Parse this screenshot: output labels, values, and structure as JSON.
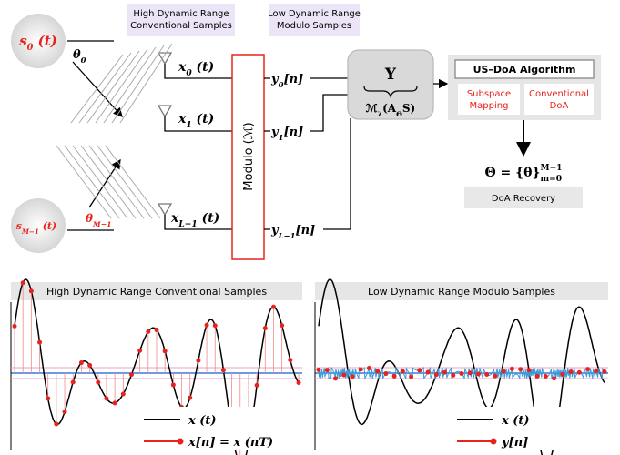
{
  "labels": {
    "high": [
      "High Dynamic Range",
      "Conventional Samples"
    ],
    "low": [
      "Low Dynamic Range",
      "Modulo Samples"
    ]
  },
  "sources": [
    [
      {
        "text": "s"
      },
      {
        "sub": "0"
      },
      {
        "text": " (t)"
      }
    ],
    [
      {
        "text": "s"
      },
      {
        "sub": "M−1"
      },
      {
        "text": " (t)"
      }
    ]
  ],
  "angles": [
    [
      {
        "text": "θ"
      },
      {
        "sub": "0"
      }
    ],
    [
      {
        "text": "θ"
      },
      {
        "sub": "M−1"
      }
    ]
  ],
  "inputs": [
    [
      {
        "text": "x"
      },
      {
        "sub": "0"
      },
      {
        "text": " (t)"
      }
    ],
    [
      {
        "text": "x"
      },
      {
        "sub": "1"
      },
      {
        "text": " (t)"
      }
    ],
    [
      {
        "text": "x"
      },
      {
        "sub": "L−1"
      },
      {
        "text": " (t)"
      }
    ]
  ],
  "outputs": [
    [
      {
        "text": "y"
      },
      {
        "sub": "0"
      },
      {
        "text": "[n]"
      }
    ],
    [
      {
        "text": "y"
      },
      {
        "sub": "1"
      },
      {
        "text": "[n]"
      }
    ],
    [
      {
        "text": "y"
      },
      {
        "sub": "L−1"
      },
      {
        "text": "[n]"
      }
    ]
  ],
  "modulo": "Modulo (ℳ)",
  "measurement": {
    "symbol": "Y",
    "formula": [
      {
        "text": "ℳ"
      },
      {
        "sub": "λ"
      },
      {
        "text": "(A"
      },
      {
        "sub": "Θ"
      },
      {
        "text": "S)"
      }
    ]
  },
  "algorithm": {
    "title": "US–DoA Algorithm",
    "steps": [
      [
        "Subspace",
        "Mapping"
      ],
      [
        "Conventional",
        "DoA"
      ]
    ]
  },
  "result": [
    {
      "text": "Θ = {θ}"
    },
    {
      "sub": "m=0"
    },
    {
      "sup": "M−1"
    }
  ],
  "recovery": "DoA Recovery",
  "panels": [
    {
      "title": "High Dynamic Range Conventional Samples",
      "legend": [
        "x (t)",
        "x[n] = x (nT)"
      ]
    },
    {
      "title": "Low Dynamic Range Modulo Samples",
      "legend": [
        "x (t)",
        "y[n]"
      ]
    }
  ]
}
